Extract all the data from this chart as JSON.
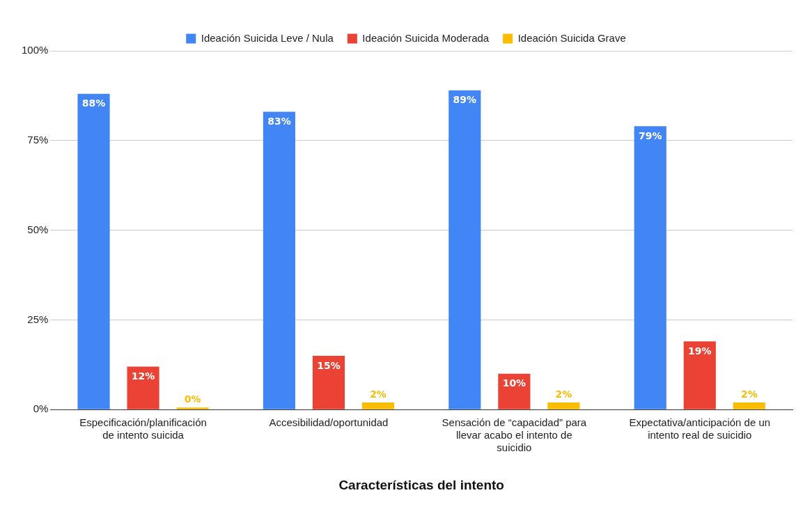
{
  "chart_data": {
    "type": "bar",
    "xlabel": "Características del intento",
    "categories": [
      "Especificación/planificación de intento suicida",
      "Accesibilidad/oportunidad",
      "Sensación de “capacidad” para llevar acabo el intento de suicidio",
      "Expectativa/anticipación de un intento real de suicidio"
    ],
    "series": [
      {
        "name": "Ideación Suicida Leve / Nula",
        "color": "#4285f4",
        "values": [
          88,
          83,
          89,
          79
        ],
        "value_labels": [
          "88%",
          "83%",
          "89%",
          "79%"
        ]
      },
      {
        "name": "Ideación Suicida Moderada",
        "color": "#ea4335",
        "values": [
          12,
          15,
          10,
          19
        ],
        "value_labels": [
          "12%",
          "15%",
          "10%",
          "19%"
        ]
      },
      {
        "name": "Ideación Suicida Grave",
        "color": "#fbbc04",
        "values": [
          0,
          2,
          2,
          2
        ],
        "value_labels": [
          "0%",
          "2%",
          "2%",
          "2%"
        ]
      }
    ],
    "ylim": [
      0,
      100
    ],
    "yticks": [
      {
        "value": 0,
        "label": "0%"
      },
      {
        "value": 25,
        "label": "25%"
      },
      {
        "value": 50,
        "label": "50%"
      },
      {
        "value": 75,
        "label": "75%"
      },
      {
        "value": 100,
        "label": "100%"
      }
    ],
    "grid": "y",
    "legend": "top"
  }
}
